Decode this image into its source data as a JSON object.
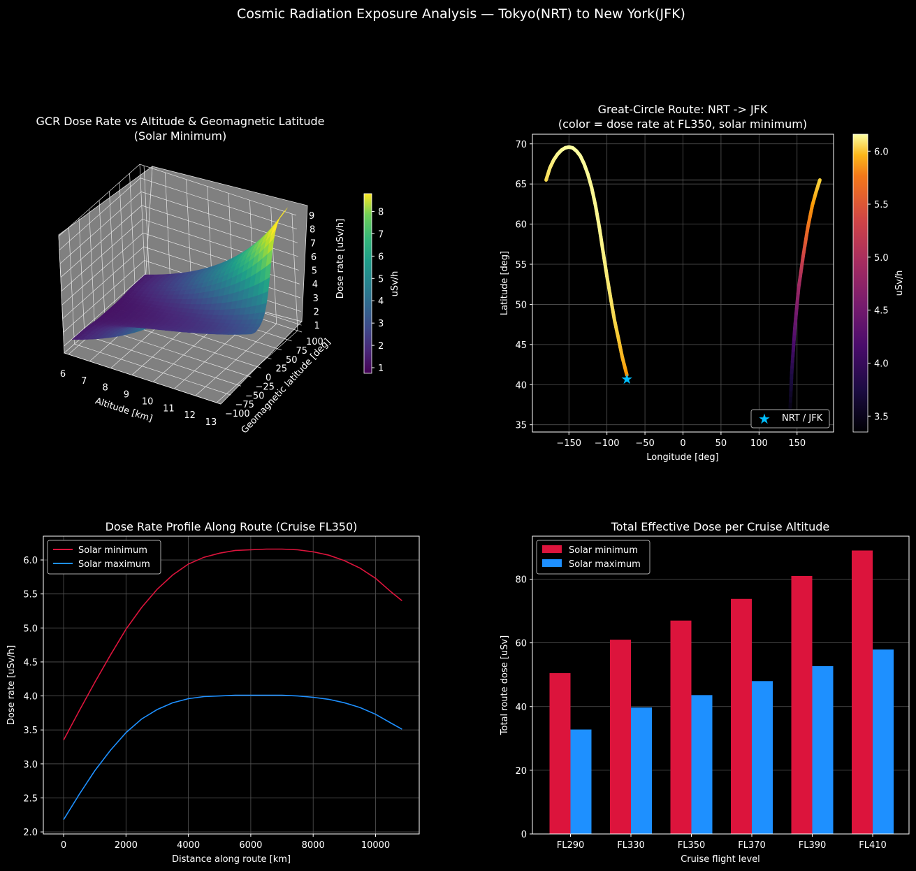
{
  "suptitle": "Cosmic Radiation Exposure Analysis — Tokyo(NRT) to New York(JFK)",
  "colors": {
    "background": "#000000",
    "solar_min": "#dc143c",
    "solar_max": "#1e90ff",
    "marker": "#00bfff",
    "surface_pane": "#808080"
  },
  "chart_data": [
    {
      "id": "surface3d",
      "type": "surface",
      "title_line1": "GCR Dose Rate vs Altitude & Geomagnetic Latitude",
      "title_line2": "(Solar Minimum)",
      "xlabel": "Altitude [km]",
      "ylabel": "Geomagnetic latitude [deg]",
      "zlabel": "Dose rate [uSv/h]",
      "xticks": [
        "6",
        "7",
        "8",
        "9",
        "10",
        "11",
        "12",
        "13"
      ],
      "yticks": [
        "−100",
        "−75",
        "−50",
        "−25",
        "0",
        "25",
        "50",
        "75",
        "100"
      ],
      "zticks": [
        "1",
        "2",
        "3",
        "4",
        "5",
        "6",
        "7",
        "8",
        "9"
      ],
      "xlim": [
        5.8,
        13.2
      ],
      "ylim": [
        -100,
        100
      ],
      "zlim": [
        0.5,
        9
      ],
      "colormap": "viridis",
      "colorbar_label": "uSv/h",
      "colorbar_ticks": [
        "1",
        "2",
        "3",
        "4",
        "5",
        "6",
        "7",
        "8"
      ],
      "colorbar_range": [
        0.75,
        8.8
      ]
    },
    {
      "id": "route",
      "type": "scatter",
      "title_line1": "Great-Circle Route: NRT -> JFK",
      "title_line2": "(color = dose rate at FL350, solar minimum)",
      "xlabel": "Longitude [deg]",
      "ylabel": "Latitude [deg]",
      "xlim": [
        -198,
        198
      ],
      "ylim": [
        34.1,
        71.2
      ],
      "xticks": [
        -150,
        -100,
        -50,
        0,
        50,
        100,
        150
      ],
      "xtick_labels": [
        "−150",
        "−100",
        "−50",
        "0",
        "50",
        "100",
        "150"
      ],
      "yticks": [
        35,
        40,
        45,
        50,
        55,
        60,
        65,
        70
      ],
      "ytick_labels": [
        "35",
        "40",
        "45",
        "50",
        "55",
        "60",
        "65",
        "70"
      ],
      "segment_east": {
        "x": [
          140.4,
          143,
          147,
          152,
          158,
          164,
          170,
          175,
          180
        ],
        "y": [
          35.8,
          41.5,
          47.0,
          52.0,
          56.0,
          59.5,
          62.3,
          64.0,
          65.5
        ],
        "dose": [
          3.35,
          3.7,
          4.1,
          4.5,
          4.9,
          5.25,
          5.5,
          5.7,
          5.85
        ]
      },
      "segment_west": {
        "x": [
          -180,
          -175,
          -170,
          -165,
          -160,
          -155,
          -150,
          -145,
          -140,
          -135,
          -130,
          -125,
          -120,
          -115,
          -110,
          -105,
          -100,
          -95,
          -90,
          -85,
          -80,
          -76,
          -73.8
        ],
        "y": [
          65.5,
          67.0,
          68.0,
          68.7,
          69.2,
          69.5,
          69.6,
          69.5,
          69.1,
          68.5,
          67.5,
          66.2,
          64.5,
          62.3,
          59.6,
          56.5,
          53.5,
          50.7,
          48.0,
          45.8,
          43.5,
          42.0,
          41.2
        ],
        "dose": [
          5.9,
          6.0,
          6.05,
          6.1,
          6.12,
          6.14,
          6.15,
          6.15,
          6.15,
          6.14,
          6.13,
          6.12,
          6.11,
          6.1,
          6.1,
          6.07,
          6.03,
          5.98,
          5.9,
          5.8,
          5.7,
          5.6,
          5.5
        ]
      },
      "wrap_line": {
        "x": [
          -180,
          180
        ],
        "y": [
          65.5,
          65.5
        ]
      },
      "marker": {
        "x": -73.8,
        "y": 40.7,
        "label": "NRT / JFK"
      },
      "colormap": "inferno",
      "colorbar_label": "uSv/h",
      "colorbar_ticks": [
        3.5,
        4.0,
        4.5,
        5.0,
        5.5,
        6.0
      ],
      "colorbar_tick_labels": [
        "3.5",
        "4.0",
        "4.5",
        "5.0",
        "5.5",
        "6.0"
      ],
      "colorbar_range": [
        3.35,
        6.16
      ],
      "legend": "lower right"
    },
    {
      "id": "profile",
      "type": "line",
      "title": "Dose Rate Profile Along Route (Cruise FL350)",
      "xlabel": "Distance along route [km]",
      "ylabel": "Dose rate [uSv/h]",
      "xlim": [
        -650,
        11400
      ],
      "ylim": [
        1.97,
        6.35
      ],
      "xticks": [
        0,
        2000,
        4000,
        6000,
        8000,
        10000
      ],
      "xtick_labels": [
        "0",
        "2000",
        "4000",
        "6000",
        "8000",
        "10000"
      ],
      "yticks": [
        2.0,
        2.5,
        3.0,
        3.5,
        4.0,
        4.5,
        5.0,
        5.5,
        6.0
      ],
      "ytick_labels": [
        "2.0",
        "2.5",
        "3.0",
        "3.5",
        "4.0",
        "4.5",
        "5.0",
        "5.5",
        "6.0"
      ],
      "x": [
        0,
        500,
        1000,
        1500,
        2000,
        2500,
        3000,
        3500,
        4000,
        4500,
        5000,
        5500,
        6000,
        6500,
        7000,
        7500,
        8000,
        8500,
        9000,
        9500,
        10000,
        10500,
        10850
      ],
      "series": [
        {
          "name": "Solar minimum",
          "color": "#dc143c",
          "values": [
            3.35,
            3.78,
            4.2,
            4.6,
            4.98,
            5.3,
            5.57,
            5.78,
            5.94,
            6.04,
            6.1,
            6.14,
            6.15,
            6.16,
            6.16,
            6.15,
            6.12,
            6.07,
            5.99,
            5.88,
            5.73,
            5.53,
            5.4
          ]
        },
        {
          "name": "Solar maximum",
          "color": "#1e90ff",
          "values": [
            2.18,
            2.55,
            2.9,
            3.2,
            3.46,
            3.66,
            3.8,
            3.9,
            3.96,
            3.99,
            4.0,
            4.01,
            4.01,
            4.01,
            4.01,
            4.0,
            3.98,
            3.95,
            3.9,
            3.83,
            3.73,
            3.6,
            3.51
          ]
        }
      ],
      "legend": "upper left"
    },
    {
      "id": "bars",
      "type": "bar",
      "title": "Total Effective Dose per Cruise Altitude",
      "xlabel": "Cruise flight level",
      "ylabel": "Total route dose [uSv]",
      "categories": [
        "FL290",
        "FL330",
        "FL350",
        "FL370",
        "FL390",
        "FL410"
      ],
      "ylim": [
        0,
        93.5
      ],
      "yticks": [
        0,
        20,
        40,
        60,
        80
      ],
      "ytick_labels": [
        "0",
        "20",
        "40",
        "60",
        "80"
      ],
      "series": [
        {
          "name": "Solar minimum",
          "color": "#dc143c",
          "values": [
            50.5,
            61.0,
            67.0,
            73.8,
            81.0,
            89.0
          ]
        },
        {
          "name": "Solar maximum",
          "color": "#1e90ff",
          "values": [
            32.8,
            39.7,
            43.6,
            48.0,
            52.7,
            57.9
          ]
        }
      ],
      "legend": "upper left"
    }
  ]
}
